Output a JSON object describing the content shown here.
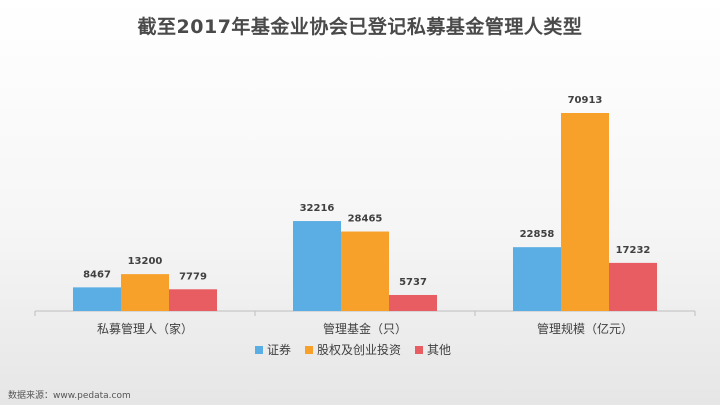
{
  "source": "数据来源：www.pedata.com",
  "chart_data": {
    "type": "bar",
    "title": "截至2017年基金业协会已登记私募基金管理人类型",
    "categories": [
      "私募管理人（家）",
      "管理基金（只）",
      "管理规模（亿元）"
    ],
    "series": [
      {
        "name": "证券",
        "color": "#5aaee3",
        "values": [
          8467,
          32216,
          22858
        ]
      },
      {
        "name": "股权及创业投资",
        "color": "#f7a12a",
        "values": [
          13200,
          28465,
          70913
        ]
      },
      {
        "name": "其他",
        "color": "#e85d62",
        "values": [
          7779,
          5737,
          17232
        ]
      }
    ],
    "data_labels": [
      [
        "8467",
        "32216",
        "22858"
      ],
      [
        "13200",
        "28465",
        "70913"
      ],
      [
        "7779",
        "5737",
        "17232"
      ]
    ],
    "ylim": [
      0,
      73000
    ],
    "grid": false,
    "legend": "bottom"
  }
}
